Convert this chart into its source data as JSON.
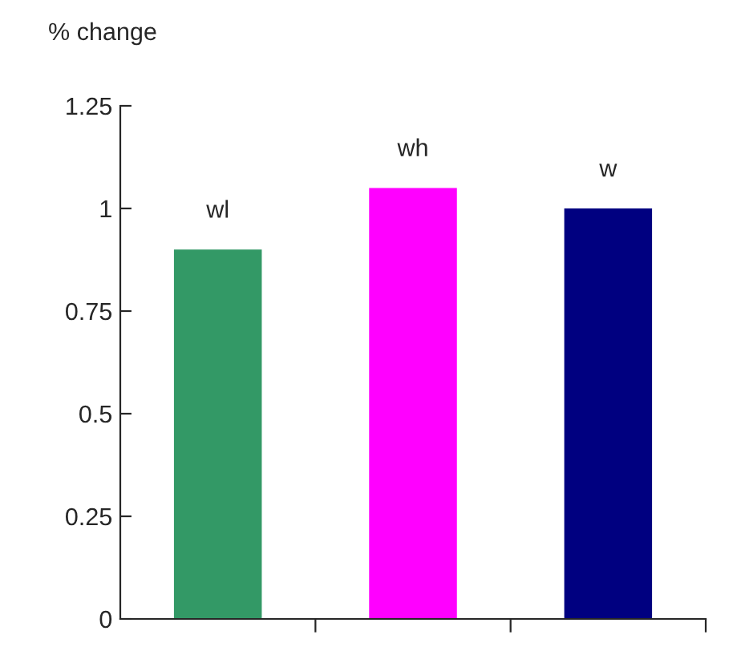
{
  "chart_data": {
    "type": "bar",
    "ylabel": "% change",
    "categories": [
      "wl",
      "wh",
      "w"
    ],
    "values": [
      0.9,
      1.05,
      1.0
    ],
    "colors": [
      "#339966",
      "#ff00ff",
      "#000080"
    ],
    "ylim": [
      0,
      1.25
    ],
    "yticks": [
      {
        "value": 0,
        "label": "0"
      },
      0.25,
      0.5,
      0.75,
      {
        "value": 1,
        "label": "1"
      },
      1.25
    ],
    "grid": false,
    "legend": false
  }
}
